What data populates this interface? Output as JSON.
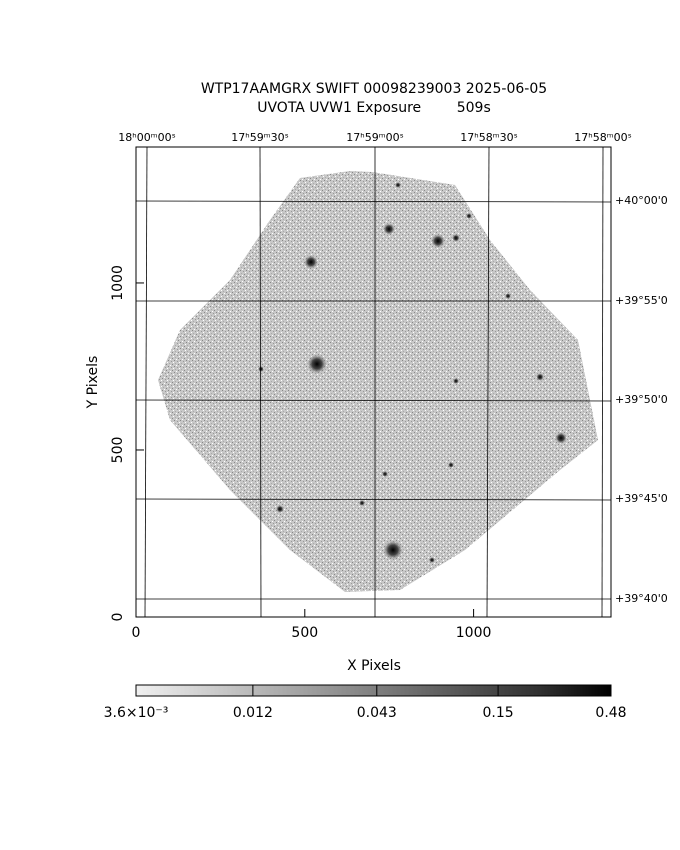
{
  "chart_data": {
    "type": "image",
    "title": "WTP17AAMGRX SWIFT 00098239003 2025-06-05",
    "subtitle": "UVOTA UVW1 Exposure        509s",
    "x_label": "X Pixels",
    "y_label": "Y Pixels",
    "xlim": [
      0,
      1407
    ],
    "ylim": [
      0,
      1407
    ],
    "xticks": [
      0,
      500,
      1000
    ],
    "yticks": [
      0,
      500,
      1000
    ],
    "ra_labels": [
      "18ʰ00ᵐ00ˢ",
      "17ʰ59ᵐ30ˢ",
      "17ʰ59ᵐ00ˢ",
      "17ʰ58ᵐ30ˢ",
      "17ʰ58ᵐ00ˢ"
    ],
    "dec_labels": [
      "+40°00'0",
      "+39°55'0",
      "+39°50'0",
      "+39°45'0",
      "+39°40'0"
    ],
    "colorbar": {
      "scale": "log",
      "lim": [
        0.0036,
        0.48
      ],
      "ticks": [
        {
          "value": 0.0036,
          "label": "3.6×10⁻³"
        },
        0.012,
        0.043,
        0.15,
        0.48
      ]
    }
  }
}
